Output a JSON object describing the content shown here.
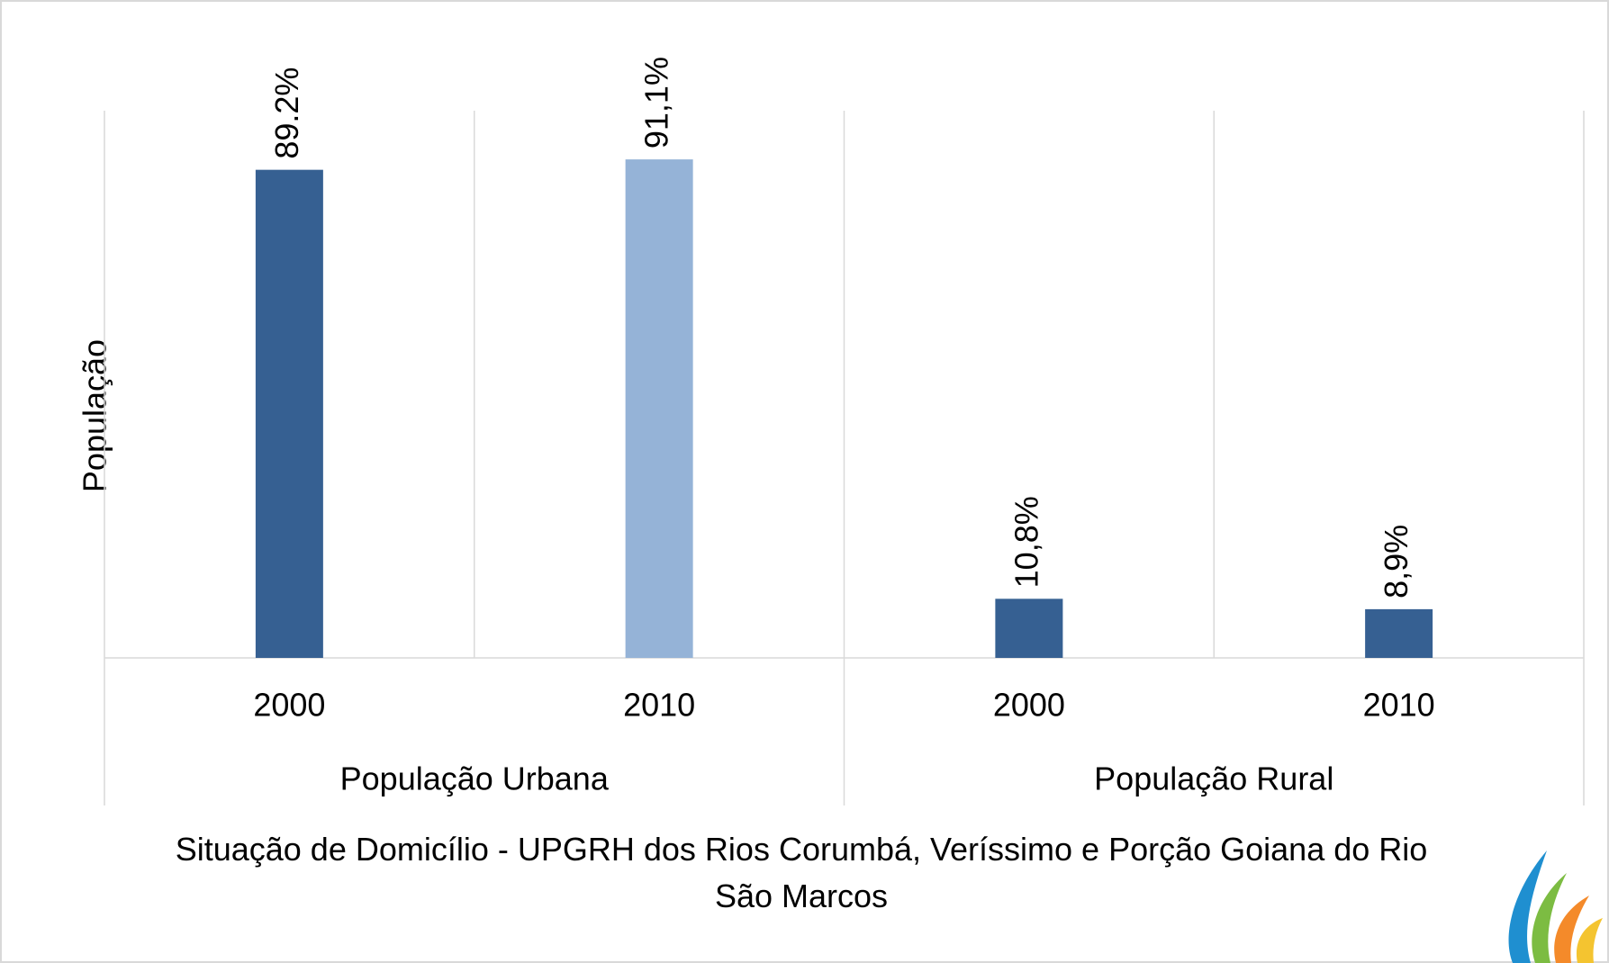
{
  "chart_data": {
    "type": "bar",
    "title": "Situação de Domicílio - UPGRH dos Rios Corumbá, Veríssimo e Porção Goiana do Rio São Marcos",
    "y_label": "População",
    "categories": [
      "2000",
      "2010",
      "2000",
      "2010"
    ],
    "groups": [
      "População Urbana",
      "População Rural"
    ],
    "values": [
      89.2,
      91.1,
      10.8,
      8.9
    ],
    "value_labels": [
      "89.2%",
      "91,1%",
      "10,8%",
      "8,9%"
    ],
    "colors": [
      "#366092",
      "#95b3d7",
      "#366092",
      "#366092"
    ],
    "ylim": [
      0,
      100
    ]
  }
}
